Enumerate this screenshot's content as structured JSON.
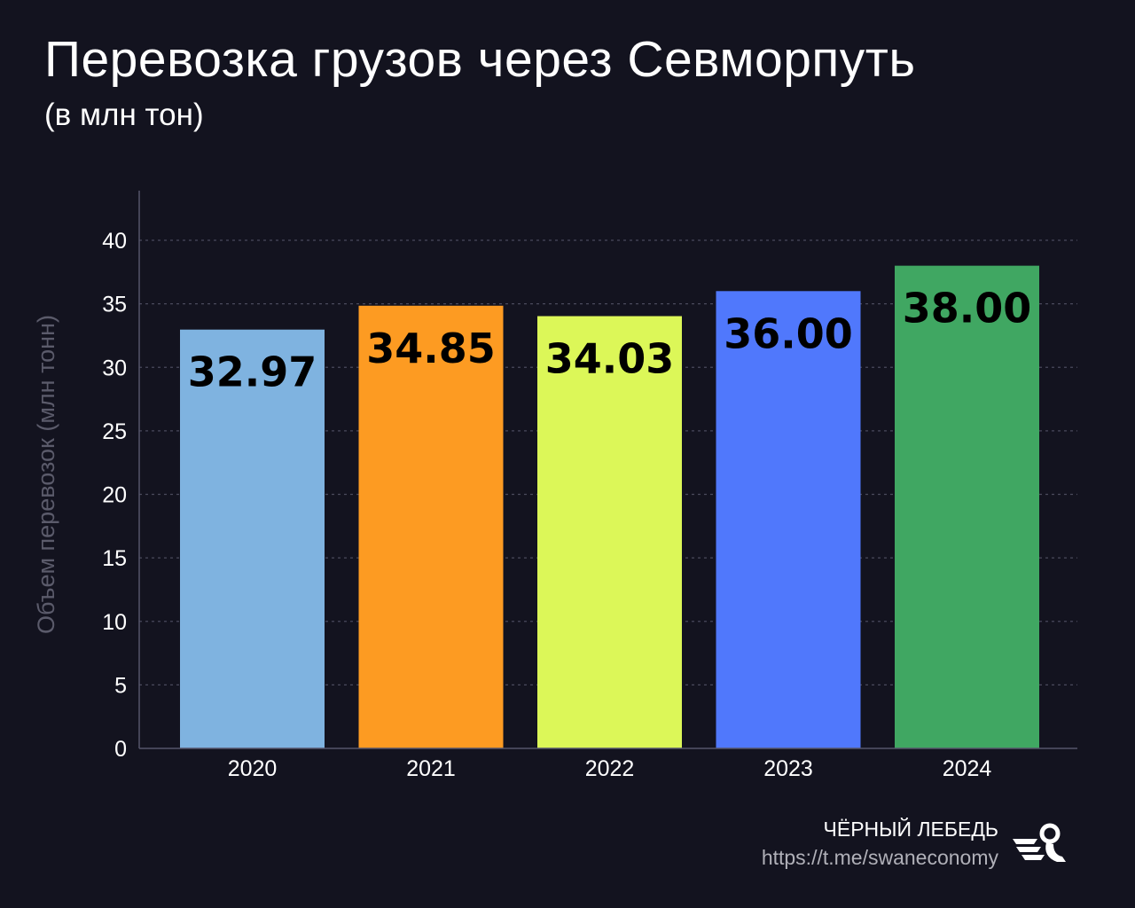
{
  "title": "Перевозка грузов через Севморпуть",
  "subtitle": "(в млн тон)",
  "footer": {
    "brand": "ЧЁРНЫЙ ЛЕБЕДЬ",
    "url": "https://t.me/swaneconomy",
    "logo_icon": "swan-logo-icon"
  },
  "chart_data": {
    "type": "bar",
    "title": "Перевозка грузов через Севморпуть",
    "subtitle": "(в млн тон)",
    "xlabel": "",
    "ylabel": "Объем перевозок (млн тонн)",
    "categories": [
      "2020",
      "2021",
      "2022",
      "2023",
      "2024"
    ],
    "values": [
      32.97,
      34.85,
      34.03,
      36.0,
      38.0
    ],
    "value_labels": [
      "32.97",
      "34.85",
      "34.03",
      "36.00",
      "38.00"
    ],
    "colors": [
      "#7fb3e0",
      "#fd9b22",
      "#dcf758",
      "#5078fc",
      "#40a762"
    ],
    "yticks": [
      0,
      5,
      10,
      15,
      20,
      25,
      30,
      35,
      40
    ],
    "ylim": [
      0,
      44
    ],
    "grid": true
  }
}
